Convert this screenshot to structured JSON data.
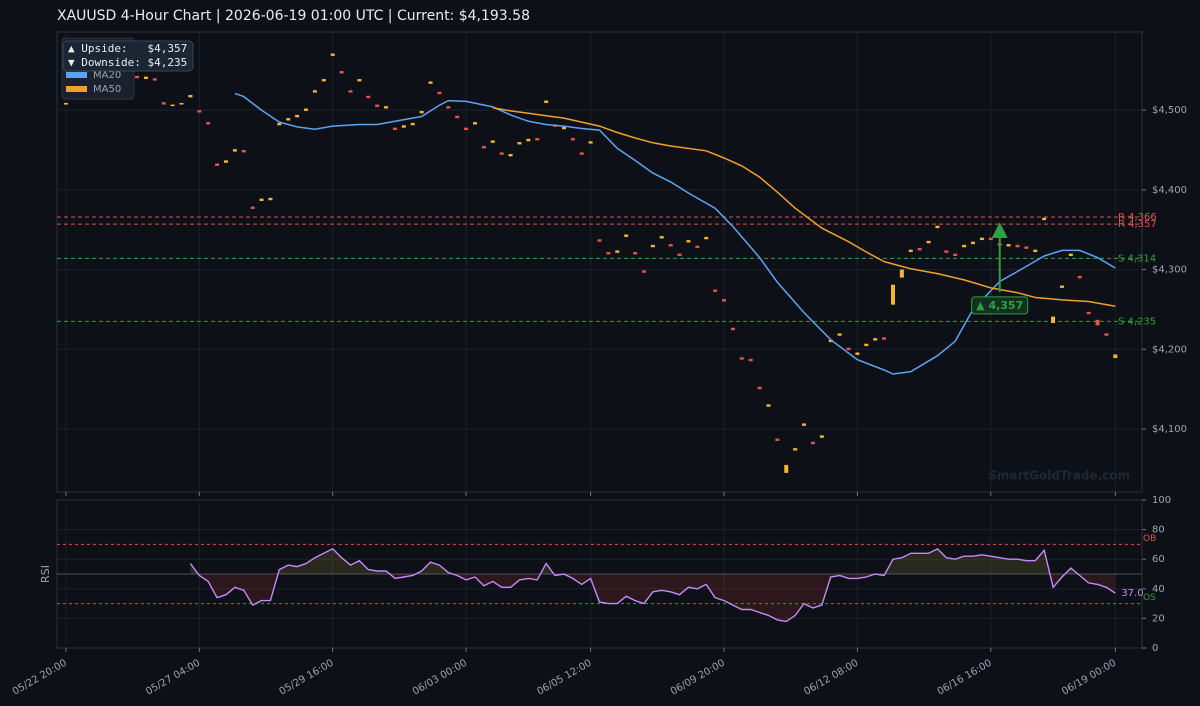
{
  "chart_data": [
    {
      "type": "candlestick",
      "title": "XAUUSD  4-Hour Chart  |  2026-06-19 01:00 UTC  |  Current: $4,193.58",
      "up_color": "#f5b52e",
      "down_color": "#e5534b",
      "open": [
        4507,
        4527,
        4542,
        4552,
        4557,
        4553,
        4551,
        4548,
        4543,
        4539,
        4540,
        4510,
        4505,
        4507,
        4516,
        4500,
        4485,
        4433,
        4434,
        4448,
        4450,
        4379,
        4386,
        4387,
        4481,
        4487,
        4491,
        4499,
        4522,
        4536,
        4568,
        4549,
        4525,
        4536,
        4518,
        4507,
        4502,
        4478,
        4478,
        4481,
        4496,
        4533,
        4523,
        4505,
        4493,
        4478,
        4482,
        4455,
        4459,
        4447,
        4442,
        4457,
        4461,
        4465,
        4509,
        4482,
        4476,
        4465,
        4447,
        4458,
        4338,
        4322,
        4321,
        4341,
        4322,
        4299,
        4328,
        4339,
        4332,
        4320,
        4334,
        4330,
        4338,
        4275,
        4263,
        4227,
        4190,
        4188,
        4153,
        4128,
        4088,
        4045,
        4073,
        4104,
        4084,
        4089,
        4209,
        4217,
        4202,
        4193,
        4204,
        4211,
        4215,
        4256,
        4290,
        4322,
        4327,
        4333,
        4352,
        4324,
        4320,
        4328,
        4332,
        4337,
        4340,
        4333,
        4329,
        4331,
        4329,
        4322,
        4362,
        4233,
        4277,
        4317,
        4292,
        4247,
        4237,
        4220,
        4189
      ],
      "close": [
        4509,
        4530,
        4545,
        4555,
        4560,
        4550,
        4548,
        4545,
        4540,
        4542,
        4537,
        4507,
        4507,
        4509,
        4519,
        4497,
        4482,
        4430,
        4437,
        4451,
        4447,
        4376,
        4389,
        4390,
        4484,
        4490,
        4494,
        4502,
        4525,
        4539,
        4571,
        4546,
        4522,
        4539,
        4515,
        4504,
        4505,
        4475,
        4481,
        4484,
        4499,
        4536,
        4520,
        4502,
        4490,
        4475,
        4485,
        4452,
        4462,
        4444,
        4445,
        4460,
        4464,
        4462,
        4512,
        4479,
        4479,
        4462,
        4444,
        4461,
        4335,
        4319,
        4324,
        4344,
        4319,
        4296,
        4331,
        4342,
        4329,
        4317,
        4337,
        4327,
        4341,
        4272,
        4260,
        4224,
        4187,
        4185,
        4150,
        4131,
        4085,
        4055,
        4076,
        4107,
        4081,
        4092,
        4212,
        4220,
        4199,
        4196,
        4207,
        4214,
        4212,
        4281,
        4300,
        4325,
        4324,
        4336,
        4355,
        4321,
        4317,
        4331,
        4335,
        4340,
        4337,
        4330,
        4332,
        4328,
        4326,
        4325,
        4365,
        4241,
        4280,
        4320,
        4289,
        4244,
        4230,
        4217,
        4193.58
      ],
      "series": [
        {
          "name": "MA20",
          "color": "#5ba3f5",
          "x": [
            19,
            20,
            22,
            24,
            26,
            28,
            30,
            33,
            35,
            37,
            40,
            42,
            43,
            45,
            48,
            50,
            52,
            54,
            56,
            58,
            60,
            62,
            64,
            66,
            68,
            70,
            73,
            75,
            78,
            80,
            83,
            86,
            89,
            92,
            93,
            95,
            98,
            100,
            102,
            105,
            108,
            110,
            112,
            114,
            116,
            118
          ],
          "values": [
            4521,
            4517,
            4500,
            4485,
            4479,
            4476,
            4480,
            4482,
            4482,
            4486,
            4492,
            4506,
            4512,
            4511,
            4504,
            4494,
            4486,
            4482,
            4480,
            4477,
            4475,
            4452,
            4437,
            4421,
            4410,
            4396,
            4377,
            4354,
            4315,
            4284,
            4246,
            4212,
            4187,
            4174,
            4169,
            4172,
            4192,
            4210,
            4250,
            4285,
            4304,
            4317,
            4324,
            4324,
            4315,
            4302
          ]
        },
        {
          "name": "MA50",
          "color": "#f0a029",
          "x": [
            48,
            50,
            52,
            54,
            56,
            58,
            60,
            62,
            64,
            66,
            68,
            72,
            74,
            76,
            78,
            80,
            82,
            85,
            88,
            90,
            92,
            95,
            98,
            101,
            104,
            107,
            109,
            110,
            112,
            115,
            118
          ],
          "values": [
            4503,
            4499,
            4496,
            4493,
            4490,
            4485,
            4480,
            4472,
            4465,
            4459,
            4455,
            4449,
            4440,
            4430,
            4416,
            4397,
            4377,
            4352,
            4335,
            4322,
            4310,
            4301,
            4295,
            4287,
            4277,
            4271,
            4265,
            4264,
            4262,
            4260,
            4254
          ]
        }
      ],
      "levels": [
        {
          "value": 4366,
          "label": "R 4,366",
          "color": "#d9534f"
        },
        {
          "value": 4357,
          "label": "R 4,357",
          "color": "#d9534f"
        },
        {
          "value": 4314,
          "label": "S 4,314",
          "color": "#2ea043"
        },
        {
          "value": 4235,
          "label": "S 4,235",
          "color": "#2ea043"
        }
      ],
      "annotation": {
        "text": "▲ 4,357",
        "x": 105,
        "from": 4272,
        "to": 4357,
        "color": "#2ea043"
      },
      "info_box": [
        "▲ Upside:   $4,357",
        "▼ Downside: $4,235"
      ],
      "watermark": "SmartGoldTrade.com",
      "legend": "upper left",
      "xlim": [
        -1,
        121
      ],
      "ylim": [
        4021,
        4598
      ],
      "yticks": [
        {
          "value": 4100,
          "label": "$4,100"
        },
        {
          "value": 4200,
          "label": "$4,200"
        },
        {
          "value": 4300,
          "label": "$4,300"
        },
        {
          "value": 4400,
          "label": "$4,400"
        },
        {
          "value": 4500,
          "label": "$4,500"
        }
      ],
      "grid": true
    },
    {
      "type": "line",
      "ylabel": "RSI",
      "series": [
        {
          "name": "RSI",
          "color": "#c58af9",
          "values": [
            null,
            null,
            null,
            null,
            null,
            null,
            null,
            null,
            null,
            null,
            null,
            null,
            null,
            null,
            57,
            49,
            45,
            34,
            36,
            41,
            39,
            29,
            32,
            32,
            53,
            56,
            55,
            57,
            61,
            64,
            67,
            61,
            56,
            59,
            53,
            52,
            52,
            47,
            48,
            49,
            52,
            58,
            56,
            51,
            49,
            46,
            48,
            42,
            45,
            41,
            41,
            46,
            47,
            46,
            57,
            49,
            50,
            47,
            43,
            47,
            31,
            30,
            30,
            35,
            32,
            30,
            38,
            39,
            38,
            36,
            41,
            40,
            43,
            34,
            32,
            29,
            26,
            26,
            24,
            22,
            19,
            18,
            22,
            30,
            27,
            29,
            48,
            49,
            47,
            47,
            48,
            50,
            49,
            60,
            61,
            64,
            64,
            64,
            67,
            61,
            60,
            62,
            62,
            63,
            62,
            61,
            60,
            60,
            59,
            59,
            66,
            41,
            48,
            54,
            49,
            44,
            43,
            41,
            37
          ],
          "current_label": "37.0"
        }
      ],
      "ob": {
        "value": 70,
        "label": "OB",
        "color": "#d9534f"
      },
      "os": {
        "value": 30,
        "label": "OS",
        "color": "#2ea043"
      },
      "midline": 50,
      "xlim": [
        -1,
        121
      ],
      "xticks": [
        {
          "value": 0,
          "label": "05/22 20:00"
        },
        {
          "value": 15,
          "label": "05/27 04:00"
        },
        {
          "value": 30,
          "label": "05/29 16:00"
        },
        {
          "value": 45,
          "label": "06/03 00:00"
        },
        {
          "value": 59,
          "label": "06/05 12:00"
        },
        {
          "value": 74,
          "label": "06/09 20:00"
        },
        {
          "value": 89,
          "label": "06/12 08:00"
        },
        {
          "value": 104,
          "label": "06/16 16:00"
        },
        {
          "value": 118,
          "label": "06/19 00:00"
        }
      ],
      "ylim": [
        0,
        100
      ],
      "yticks": [
        0,
        20,
        40,
        60,
        80,
        100
      ],
      "grid": true
    }
  ]
}
